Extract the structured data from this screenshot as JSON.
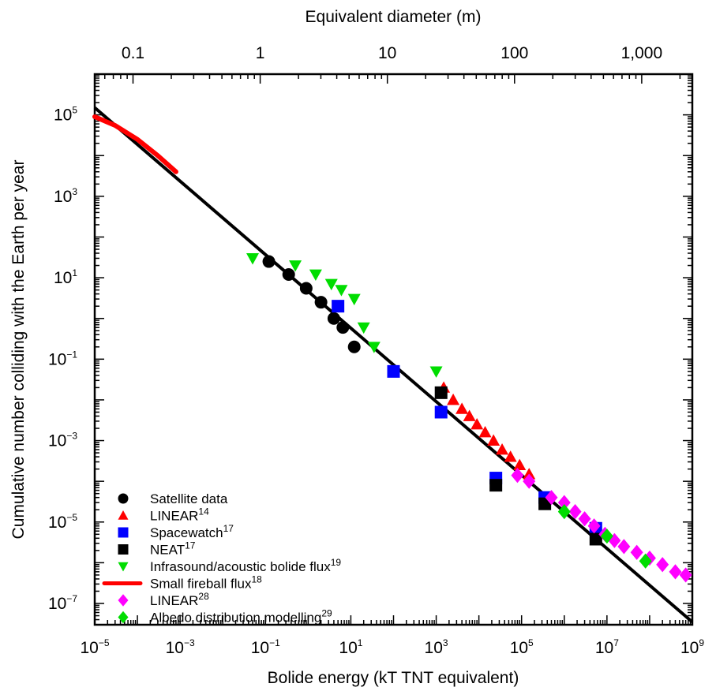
{
  "chart_data": {
    "type": "scatter",
    "xlabel": "Bolide energy (kT TNT equivalent)",
    "ylabel": "Cumulative number colliding with the Earth per year",
    "x2label": "Equivalent diameter (m)",
    "x_scale": "log",
    "y_scale": "log",
    "xlim": [
      1e-05,
      1000000000.0
    ],
    "ylim": [
      3e-08,
      1000000.0
    ],
    "x_ticks": [
      {
        "value": 1e-05,
        "base": "10",
        "exp": "−5"
      },
      {
        "value": 0.001,
        "base": "10",
        "exp": "−3"
      },
      {
        "value": 0.1,
        "base": "10",
        "exp": "−1"
      },
      {
        "value": 10.0,
        "base": "10",
        "exp": "1"
      },
      {
        "value": 1000.0,
        "base": "10",
        "exp": "3"
      },
      {
        "value": 100000.0,
        "base": "10",
        "exp": "5"
      },
      {
        "value": 10000000.0,
        "base": "10",
        "exp": "7"
      },
      {
        "value": 1000000000.0,
        "base": "10",
        "exp": "9"
      }
    ],
    "y_ticks": [
      {
        "value": 100000.0,
        "base": "10",
        "exp": "5"
      },
      {
        "value": 1000.0,
        "base": "10",
        "exp": "3"
      },
      {
        "value": 10.0,
        "base": "10",
        "exp": "1"
      },
      {
        "value": 0.1,
        "base": "10",
        "exp": "−1"
      },
      {
        "value": 0.001,
        "base": "10",
        "exp": "−3"
      },
      {
        "value": 1e-05,
        "base": "10",
        "exp": "−5"
      },
      {
        "value": 1e-07,
        "base": "10",
        "exp": "−7"
      }
    ],
    "top_ticks": [
      {
        "value": 0.1,
        "label": "0.1"
      },
      {
        "value": 1,
        "label": "1"
      },
      {
        "value": 10,
        "label": "10"
      },
      {
        "value": 100,
        "label": "100"
      },
      {
        "value": 1000,
        "label": "1,000"
      }
    ],
    "top_axis": {
      "xlim": [
        0.05,
        2500
      ]
    },
    "grid": false,
    "legend_position": "bottom-left",
    "fit_line": {
      "x": [
        1e-05,
        1000000000.0
      ],
      "y": [
        150000.0,
        3.5e-08
      ],
      "color": "#000000"
    },
    "series": [
      {
        "name": "Satellite data",
        "sup": "",
        "marker": "circle",
        "color": "#000000",
        "points": [
          [
            0.12,
            25
          ],
          [
            0.35,
            12
          ],
          [
            0.9,
            5.5
          ],
          [
            2.0,
            2.5
          ],
          [
            4.0,
            1.0
          ],
          [
            6.5,
            0.6
          ],
          [
            12,
            0.2
          ]
        ]
      },
      {
        "name": "LINEAR",
        "sup": "14",
        "marker": "triangle-up",
        "color": "#ff0000",
        "points": [
          [
            1500,
            0.02
          ],
          [
            2500,
            0.01
          ],
          [
            4000,
            0.006
          ],
          [
            6000,
            0.004
          ],
          [
            9000,
            0.0025
          ],
          [
            14000,
            0.0016
          ],
          [
            22000,
            0.001
          ],
          [
            35000,
            0.0006
          ],
          [
            55000,
            0.0004
          ],
          [
            90000,
            0.00025
          ],
          [
            150000,
            0.00015
          ]
        ]
      },
      {
        "name": "Spacewatch",
        "sup": "17",
        "marker": "square",
        "color": "#0000ff",
        "points": [
          [
            5,
            2.0
          ],
          [
            100,
            0.05
          ],
          [
            1300,
            0.005
          ],
          [
            25000,
            0.00012
          ],
          [
            350000,
            4e-05
          ],
          [
            5500000,
            7e-06
          ]
        ]
      },
      {
        "name": "NEAT",
        "sup": "17",
        "marker": "square",
        "color": "#000000",
        "points": [
          [
            1300,
            0.015
          ],
          [
            25000,
            8e-05
          ],
          [
            350000,
            2.8e-05
          ],
          [
            5500000,
            3.8e-06
          ]
        ]
      },
      {
        "name": "Infrasound/acoustic bolide flux",
        "sup": "19",
        "marker": "triangle-down",
        "color": "#00dd00",
        "points": [
          [
            0.05,
            30
          ],
          [
            0.5,
            20
          ],
          [
            1.5,
            12
          ],
          [
            3.5,
            7
          ],
          [
            6,
            5
          ],
          [
            12,
            3
          ],
          [
            20,
            0.6
          ],
          [
            35,
            0.2
          ],
          [
            1000,
            0.05
          ]
        ]
      },
      {
        "name": "Small fireball flux",
        "sup": "18",
        "marker": "line",
        "color": "#ff0000",
        "points": [
          [
            1e-05,
            90000
          ],
          [
            3e-05,
            55000
          ],
          [
            0.0001,
            25000
          ],
          [
            0.0003,
            10000
          ],
          [
            0.0008,
            4000
          ]
        ]
      },
      {
        "name": "LINEAR",
        "sup": "28",
        "marker": "diamond",
        "color": "#ff00ff",
        "points": [
          [
            80000,
            0.00014
          ],
          [
            150000,
            0.0001
          ],
          [
            500000,
            4e-05
          ],
          [
            1000000,
            3e-05
          ],
          [
            1800000,
            1.8e-05
          ],
          [
            3000000,
            1.2e-05
          ],
          [
            5000000,
            8e-06
          ],
          [
            9000000,
            5e-06
          ],
          [
            15000000,
            3.5e-06
          ],
          [
            25000000,
            2.5e-06
          ],
          [
            50000000,
            1.8e-06
          ],
          [
            100000000,
            1.3e-06
          ],
          [
            200000000,
            9e-07
          ],
          [
            400000000,
            6e-07
          ],
          [
            700000000,
            5e-07
          ]
        ]
      },
      {
        "name": "Albedo distribution modelling",
        "sup": "29",
        "marker": "diamond",
        "color": "#00dd00",
        "points": [
          [
            1000000,
            1.8e-05
          ],
          [
            10000000,
            4.5e-06
          ],
          [
            80000000,
            1.1e-06
          ]
        ]
      }
    ]
  }
}
